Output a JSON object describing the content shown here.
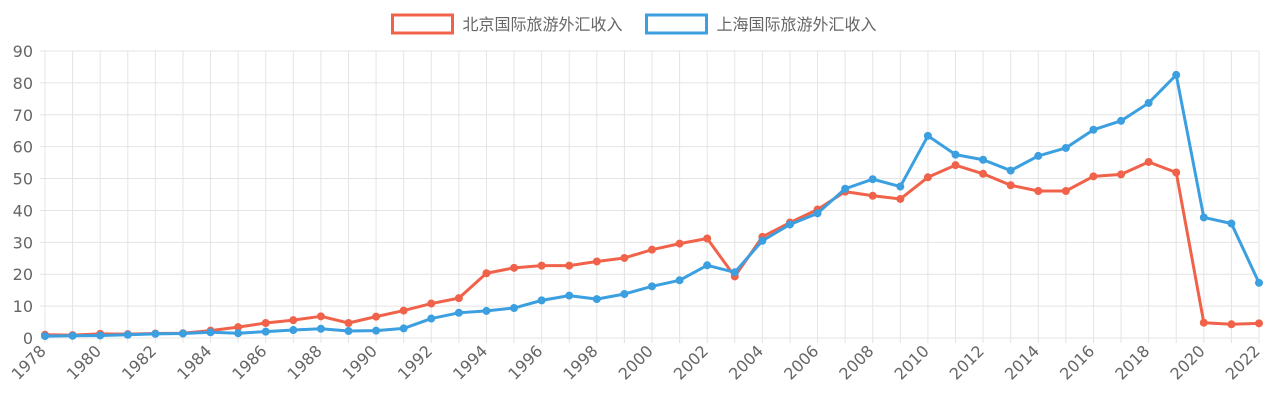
{
  "chart_data": {
    "type": "line",
    "title": "",
    "xlabel": "",
    "ylabel": "",
    "ylim": [
      0,
      90
    ],
    "yticks": [
      0,
      10,
      20,
      30,
      40,
      50,
      60,
      70,
      80,
      90
    ],
    "grid": true,
    "legend_position": "top-center",
    "x": [
      1978,
      1979,
      1980,
      1981,
      1982,
      1983,
      1984,
      1985,
      1986,
      1987,
      1988,
      1989,
      1990,
      1991,
      1992,
      1993,
      1994,
      1995,
      1996,
      1997,
      1998,
      1999,
      2000,
      2001,
      2002,
      2003,
      2004,
      2005,
      2006,
      2007,
      2008,
      2009,
      2010,
      2011,
      2012,
      2013,
      2014,
      2015,
      2016,
      2017,
      2018,
      2019,
      2020,
      2021,
      2022
    ],
    "xtick_labels": [
      "1978",
      "1980",
      "1982",
      "1984",
      "1986",
      "1988",
      "1990",
      "1992",
      "1994",
      "1996",
      "1998",
      "2000",
      "2002",
      "2004",
      "2006",
      "2008",
      "2010",
      "2012",
      "2014",
      "2016",
      "2018",
      "2020",
      "2022"
    ],
    "series": [
      {
        "name": "北京国际旅游外汇收入",
        "color": "#f0634a",
        "values": [
          1.0,
          0.9,
          1.3,
          1.2,
          1.4,
          1.5,
          2.3,
          3.4,
          4.7,
          5.6,
          6.8,
          4.7,
          6.7,
          8.6,
          10.8,
          12.5,
          20.3,
          22.0,
          22.7,
          22.7,
          24.0,
          25.1,
          27.7,
          29.6,
          31.2,
          19.3,
          31.7,
          36.2,
          40.3,
          45.9,
          44.6,
          43.6,
          50.4,
          54.2,
          51.5,
          47.9,
          46.1,
          46.1,
          50.7,
          51.3,
          55.2,
          51.9,
          4.8,
          4.3,
          4.6
        ]
      },
      {
        "name": "上海国际旅游外汇收入",
        "color": "#3b9fe0",
        "values": [
          0.6,
          0.7,
          0.8,
          1.0,
          1.3,
          1.4,
          1.8,
          1.5,
          2.0,
          2.5,
          2.9,
          2.2,
          2.3,
          3.0,
          6.1,
          7.9,
          8.5,
          9.4,
          11.8,
          13.3,
          12.2,
          13.8,
          16.2,
          18.1,
          22.8,
          20.6,
          30.5,
          35.6,
          39.1,
          46.8,
          49.8,
          47.5,
          63.4,
          57.5,
          55.9,
          52.5,
          57.1,
          59.6,
          65.3,
          68.1,
          73.7,
          82.5,
          37.8,
          35.9,
          17.3
        ]
      }
    ]
  }
}
